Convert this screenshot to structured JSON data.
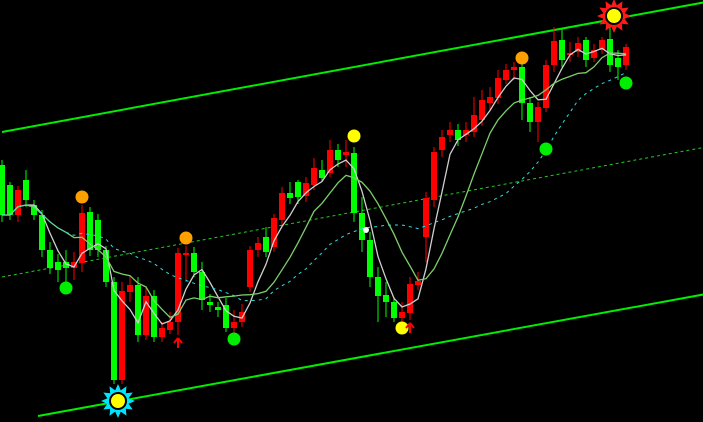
{
  "chart_data": {
    "type": "candlestick",
    "title": "",
    "grid": false,
    "background": "#000000",
    "colors": {
      "up_candle": "#ff0000",
      "down_candle": "#00ff00",
      "ma_fast": "#d0d0d0",
      "ma_medium": "#7ccf6a",
      "ma_slow": "#33dddd",
      "channel": "#00ee00",
      "channel_mid": "#22cc22",
      "marker_orange": "#ffa000",
      "marker_yellow": "#ffff00",
      "marker_green": "#00ee00",
      "arrow": "#ff0000",
      "star_low": "#00e5ff",
      "star_high": "#ff1a1a"
    },
    "candle_fields": [
      "open",
      "high",
      "low",
      "close"
    ],
    "candles": [
      [
        257,
        262,
        200,
        207
      ],
      [
        237,
        240,
        202,
        207
      ],
      [
        207,
        236,
        200,
        232
      ],
      [
        242,
        252,
        215,
        222
      ],
      [
        217,
        222,
        202,
        207
      ],
      [
        207,
        212,
        165,
        172
      ],
      [
        172,
        180,
        148,
        154
      ],
      [
        160,
        168,
        140,
        152
      ],
      [
        160,
        172,
        140,
        154
      ],
      [
        154,
        170,
        142,
        160
      ],
      [
        159,
        217,
        150,
        209
      ],
      [
        210,
        215,
        166,
        172
      ],
      [
        202,
        208,
        165,
        172
      ],
      [
        172,
        176,
        135,
        140
      ],
      [
        140,
        145,
        38,
        42
      ],
      [
        42,
        140,
        38,
        131
      ],
      [
        130,
        147,
        120,
        137
      ],
      [
        137,
        145,
        80,
        87
      ],
      [
        87,
        135,
        82,
        126
      ],
      [
        126,
        132,
        80,
        85
      ],
      [
        85,
        100,
        80,
        94
      ],
      [
        92,
        110,
        88,
        100
      ],
      [
        100,
        174,
        87,
        169
      ],
      [
        167,
        176,
        140,
        169
      ],
      [
        169,
        175,
        145,
        150
      ],
      [
        150,
        160,
        112,
        122
      ],
      [
        120,
        128,
        110,
        117
      ],
      [
        115,
        120,
        105,
        112
      ],
      [
        117,
        124,
        90,
        94
      ],
      [
        94,
        112,
        85,
        100
      ],
      [
        100,
        118,
        95,
        110
      ],
      [
        135,
        176,
        130,
        172
      ],
      [
        172,
        185,
        165,
        179
      ],
      [
        185,
        195,
        165,
        170
      ],
      [
        175,
        208,
        170,
        204
      ],
      [
        202,
        235,
        197,
        229
      ],
      [
        229,
        240,
        218,
        224
      ],
      [
        240,
        242,
        218,
        225
      ],
      [
        226,
        245,
        220,
        239
      ],
      [
        237,
        264,
        232,
        254
      ],
      [
        252,
        262,
        240,
        244
      ],
      [
        249,
        282,
        245,
        272
      ],
      [
        272,
        278,
        255,
        262
      ],
      [
        267,
        282,
        255,
        270
      ],
      [
        269,
        275,
        200,
        209
      ],
      [
        209,
        225,
        170,
        182
      ],
      [
        182,
        190,
        135,
        145
      ],
      [
        145,
        155,
        100,
        126
      ],
      [
        127,
        140,
        105,
        120
      ],
      [
        120,
        125,
        100,
        104
      ],
      [
        104,
        120,
        100,
        110
      ],
      [
        109,
        145,
        102,
        138
      ],
      [
        137,
        150,
        132,
        141
      ],
      [
        185,
        230,
        160,
        224
      ],
      [
        222,
        275,
        215,
        270
      ],
      [
        272,
        292,
        265,
        285
      ],
      [
        287,
        300,
        280,
        292
      ],
      [
        292,
        298,
        276,
        282
      ],
      [
        287,
        300,
        280,
        292
      ],
      [
        290,
        325,
        285,
        307
      ],
      [
        302,
        332,
        296,
        322
      ],
      [
        319,
        335,
        312,
        325
      ],
      [
        324,
        352,
        318,
        344
      ],
      [
        342,
        358,
        338,
        352
      ],
      [
        352,
        360,
        342,
        355
      ],
      [
        355,
        360,
        302,
        319
      ],
      [
        319,
        325,
        290,
        300
      ],
      [
        300,
        320,
        280,
        315
      ],
      [
        314,
        362,
        310,
        357
      ],
      [
        357,
        395,
        350,
        381
      ],
      [
        382,
        393,
        355,
        362
      ],
      [
        367,
        380,
        360,
        369
      ],
      [
        370,
        385,
        365,
        379
      ],
      [
        382,
        385,
        355,
        362
      ],
      [
        364,
        378,
        360,
        372
      ],
      [
        372,
        385,
        368,
        382
      ],
      [
        383,
        395,
        350,
        357
      ],
      [
        364,
        372,
        342,
        355
      ],
      [
        357,
        378,
        352,
        375
      ]
    ],
    "moving_averages": [
      {
        "period": 4,
        "style": "solid",
        "color_key": "ma_fast"
      },
      {
        "period": 9,
        "style": "solid",
        "color_key": "ma_medium"
      },
      {
        "period": 20,
        "style": "dashed",
        "color_key": "ma_slow"
      }
    ],
    "channel": {
      "upper": {
        "i0": 0,
        "p0": 290,
        "i1": 88,
        "p1": 420
      },
      "middle": {
        "i0": 0,
        "p0": 145,
        "i1": 88,
        "p1": 275
      },
      "lower": {
        "i0": 4.5,
        "p0": 6,
        "i1": 88,
        "p1": 128
      }
    },
    "markers": [
      {
        "type": "dot",
        "color_key": "marker_orange",
        "index": 10,
        "price": 225
      },
      {
        "type": "dot",
        "color_key": "marker_orange",
        "index": 23,
        "price": 184
      },
      {
        "type": "dot",
        "color_key": "marker_orange",
        "index": 65,
        "price": 364
      },
      {
        "type": "dot",
        "color_key": "marker_yellow",
        "index": 44,
        "price": 286
      },
      {
        "type": "dot",
        "color_key": "marker_yellow",
        "index": 50,
        "price": 94
      },
      {
        "type": "dot",
        "color_key": "marker_green",
        "index": 8,
        "price": 134
      },
      {
        "type": "dot",
        "color_key": "marker_green",
        "index": 29,
        "price": 83
      },
      {
        "type": "dot",
        "color_key": "marker_green",
        "index": 68,
        "price": 273
      },
      {
        "type": "dot",
        "color_key": "marker_green",
        "index": 78,
        "price": 339
      },
      {
        "type": "arrow-up",
        "color_key": "arrow",
        "index": 22,
        "price": 79
      },
      {
        "type": "arrow-up",
        "color_key": "arrow",
        "index": 51,
        "price": 94
      },
      {
        "type": "star",
        "color_key": "star_low",
        "index": 14.5,
        "price": 21
      },
      {
        "type": "star",
        "color_key": "star_high",
        "index": 76.5,
        "price": 406
      },
      {
        "type": "small-dot",
        "color_key": "ma_fast",
        "index": 45.5,
        "price": 192
      }
    ]
  }
}
